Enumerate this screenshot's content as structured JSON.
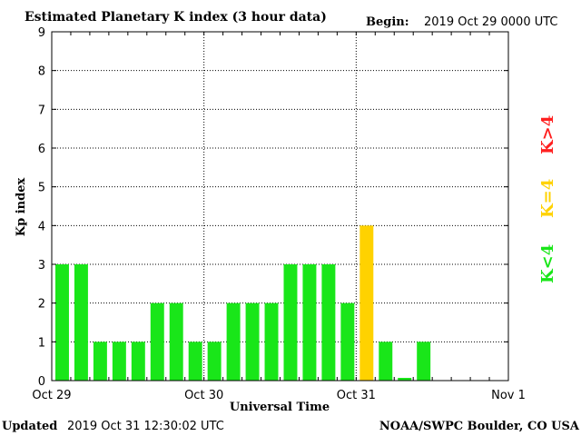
{
  "header": {
    "title": "Estimated Planetary K index (3 hour data)",
    "begin_label": "Begin:",
    "begin_value": "2019 Oct 29 0000 UTC"
  },
  "footer": {
    "updated_label": "Updated",
    "updated_value": "2019 Oct 31 12:30:02 UTC",
    "source": "NOAA/SWPC Boulder, CO USA"
  },
  "legend": {
    "high": {
      "text": "K>4",
      "color": "#ff2020"
    },
    "mid": {
      "text": "K=4",
      "color": "#ffd200"
    },
    "low": {
      "text": "K<4",
      "color": "#19e619"
    }
  },
  "chart_data": {
    "type": "bar",
    "title": "Estimated Planetary K index (3 hour data)",
    "xlabel": "Universal Time",
    "ylabel": "Kp index",
    "ylim": [
      0,
      9
    ],
    "yticks": [
      0,
      1,
      2,
      3,
      4,
      5,
      6,
      7,
      8,
      9
    ],
    "xticks": [
      "Oct 29",
      "Oct 30",
      "Oct 31",
      "Nov 1"
    ],
    "grid": true,
    "slots_total": 24,
    "interval_hours": 3,
    "values": [
      3,
      3,
      1,
      1,
      1,
      2,
      2,
      1,
      1,
      2,
      2,
      2,
      3,
      3,
      3,
      2,
      4,
      1,
      0.07,
      1
    ],
    "colors": {
      "below4": "#19e619",
      "equal4": "#ffd200",
      "above4": "#ff2020"
    }
  }
}
